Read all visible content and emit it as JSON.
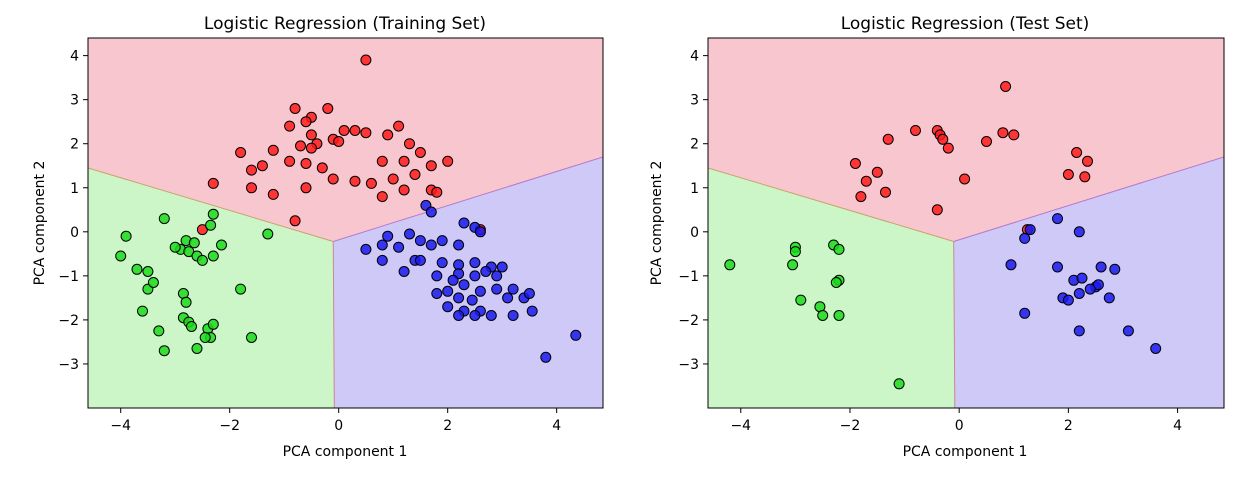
{
  "chart_data": [
    {
      "type": "scatter",
      "title": "Logistic Regression (Training Set)",
      "xlabel": "PCA component 1",
      "ylabel": "PCA component 2",
      "xlim": [
        -4.6,
        4.85
      ],
      "ylim": [
        -4.0,
        4.4
      ],
      "xticks": [
        -4,
        -2,
        0,
        2,
        4
      ],
      "yticks": [
        4,
        3,
        2,
        1,
        0,
        -1,
        -2,
        -3
      ],
      "xtick_labels": [
        "−4",
        "−2",
        "0",
        "2",
        "4"
      ],
      "ytick_labels": [
        "4",
        "3",
        "2",
        "1",
        "0",
        "−1",
        "−2",
        "−3"
      ],
      "regions": [
        {
          "name": "class-0-region",
          "color": "#f8c6cf",
          "polygon": [
            [
              -4.6,
              1.45
            ],
            [
              -0.1,
              -0.22
            ],
            [
              4.85,
              1.7
            ],
            [
              4.85,
              4.4
            ],
            [
              -4.6,
              4.4
            ]
          ]
        },
        {
          "name": "class-1-region",
          "color": "#ccf5c8",
          "polygon": [
            [
              -4.6,
              1.45
            ],
            [
              -0.1,
              -0.22
            ],
            [
              -0.08,
              -4.0
            ],
            [
              -4.6,
              -4.0
            ]
          ]
        },
        {
          "name": "class-2-region",
          "color": "#cec9f6",
          "polygon": [
            [
              -0.1,
              -0.22
            ],
            [
              4.85,
              1.7
            ],
            [
              4.85,
              -4.0
            ],
            [
              -0.08,
              -4.0
            ]
          ]
        }
      ],
      "series": [
        {
          "name": "class-0",
          "color": "#ff1a1a",
          "points": [
            [
              0.5,
              3.9
            ],
            [
              -0.8,
              2.8
            ],
            [
              -0.5,
              2.6
            ],
            [
              -0.2,
              2.8
            ],
            [
              -0.9,
              2.4
            ],
            [
              -0.6,
              2.5
            ],
            [
              -0.5,
              2.2
            ],
            [
              -0.4,
              2.0
            ],
            [
              -0.7,
              1.95
            ],
            [
              -0.5,
              1.9
            ],
            [
              -0.1,
              2.1
            ],
            [
              0.0,
              2.05
            ],
            [
              0.1,
              2.3
            ],
            [
              0.3,
              2.3
            ],
            [
              0.5,
              2.25
            ],
            [
              0.8,
              1.6
            ],
            [
              0.9,
              2.2
            ],
            [
              1.1,
              2.4
            ],
            [
              1.3,
              2.0
            ],
            [
              1.5,
              1.8
            ],
            [
              1.7,
              1.5
            ],
            [
              2.0,
              1.6
            ],
            [
              -1.8,
              1.8
            ],
            [
              -1.6,
              1.4
            ],
            [
              -1.4,
              1.5
            ],
            [
              -1.2,
              1.85
            ],
            [
              -0.9,
              1.6
            ],
            [
              -0.6,
              1.55
            ],
            [
              -0.3,
              1.45
            ],
            [
              -0.1,
              1.2
            ],
            [
              0.3,
              1.15
            ],
            [
              0.6,
              1.1
            ],
            [
              0.8,
              0.8
            ],
            [
              1.0,
              1.2
            ],
            [
              1.2,
              0.95
            ],
            [
              1.4,
              1.3
            ],
            [
              1.7,
              0.95
            ],
            [
              -2.3,
              1.1
            ],
            [
              -1.6,
              1.0
            ],
            [
              -1.2,
              0.85
            ],
            [
              -0.8,
              0.25
            ],
            [
              -0.6,
              1.0
            ],
            [
              1.2,
              1.6
            ],
            [
              -2.5,
              0.05
            ],
            [
              2.6,
              0.05
            ],
            [
              1.8,
              0.9
            ]
          ]
        },
        {
          "name": "class-1",
          "color": "#1adb1a",
          "points": [
            [
              -3.9,
              -0.1
            ],
            [
              -4.0,
              -0.55
            ],
            [
              -3.7,
              -0.85
            ],
            [
              -3.5,
              -0.9
            ],
            [
              -3.5,
              -1.3
            ],
            [
              -3.4,
              -1.15
            ],
            [
              -3.2,
              0.3
            ],
            [
              -2.9,
              -0.4
            ],
            [
              -2.8,
              -0.2
            ],
            [
              -2.75,
              -0.45
            ],
            [
              -2.65,
              -0.25
            ],
            [
              -2.6,
              -0.55
            ],
            [
              -2.5,
              -0.65
            ],
            [
              -2.35,
              0.15
            ],
            [
              -2.3,
              0.4
            ],
            [
              -2.15,
              -0.3
            ],
            [
              -2.3,
              -0.55
            ],
            [
              -3.0,
              -0.35
            ],
            [
              -3.6,
              -1.8
            ],
            [
              -3.3,
              -2.25
            ],
            [
              -3.2,
              -2.7
            ],
            [
              -2.85,
              -1.4
            ],
            [
              -2.8,
              -1.6
            ],
            [
              -2.85,
              -1.95
            ],
            [
              -2.75,
              -2.05
            ],
            [
              -2.7,
              -2.15
            ],
            [
              -2.6,
              -2.65
            ],
            [
              -2.4,
              -2.2
            ],
            [
              -2.35,
              -2.4
            ],
            [
              -2.3,
              -2.1
            ],
            [
              -1.8,
              -1.3
            ],
            [
              -1.6,
              -2.4
            ],
            [
              -1.3,
              -0.05
            ],
            [
              -2.45,
              -2.4
            ]
          ]
        },
        {
          "name": "class-2",
          "color": "#1a1aee",
          "points": [
            [
              1.6,
              0.6
            ],
            [
              1.7,
              0.45
            ],
            [
              2.3,
              0.2
            ],
            [
              2.5,
              0.1
            ],
            [
              2.6,
              0.0
            ],
            [
              0.5,
              -0.4
            ],
            [
              0.8,
              -0.3
            ],
            [
              0.9,
              -0.1
            ],
            [
              1.1,
              -0.35
            ],
            [
              1.3,
              -0.05
            ],
            [
              1.5,
              -0.2
            ],
            [
              1.7,
              -0.3
            ],
            [
              1.9,
              -0.2
            ],
            [
              2.2,
              -0.3
            ],
            [
              0.8,
              -0.65
            ],
            [
              1.4,
              -0.65
            ],
            [
              1.5,
              -0.65
            ],
            [
              1.9,
              -0.7
            ],
            [
              2.2,
              -0.75
            ],
            [
              2.2,
              -0.95
            ],
            [
              2.5,
              -0.7
            ],
            [
              2.8,
              -0.8
            ],
            [
              2.7,
              -0.9
            ],
            [
              3.0,
              -0.8
            ],
            [
              1.2,
              -0.9
            ],
            [
              1.8,
              -1.0
            ],
            [
              2.1,
              -1.1
            ],
            [
              2.5,
              -1.0
            ],
            [
              1.8,
              -1.4
            ],
            [
              2.0,
              -1.35
            ],
            [
              2.3,
              -1.2
            ],
            [
              2.6,
              -1.35
            ],
            [
              2.9,
              -1.3
            ],
            [
              3.2,
              -1.3
            ],
            [
              3.4,
              -1.5
            ],
            [
              3.5,
              -1.4
            ],
            [
              2.0,
              -1.7
            ],
            [
              2.3,
              -1.8
            ],
            [
              2.6,
              -1.8
            ],
            [
              2.8,
              -1.9
            ],
            [
              3.2,
              -1.9
            ],
            [
              3.55,
              -1.8
            ],
            [
              2.2,
              -1.9
            ],
            [
              2.5,
              -1.9
            ],
            [
              3.8,
              -2.85
            ],
            [
              4.35,
              -2.35
            ],
            [
              2.9,
              -1.0
            ],
            [
              2.45,
              -1.55
            ],
            [
              2.2,
              -1.5
            ],
            [
              3.1,
              -1.5
            ]
          ]
        }
      ]
    },
    {
      "type": "scatter",
      "title": "Logistic Regression (Test Set)",
      "xlabel": "PCA component 1",
      "ylabel": "PCA component 2",
      "xlim": [
        -4.6,
        4.85
      ],
      "ylim": [
        -4.0,
        4.4
      ],
      "xticks": [
        -4,
        -2,
        0,
        2,
        4
      ],
      "yticks": [
        4,
        3,
        2,
        1,
        0,
        -1,
        -2,
        -3
      ],
      "xtick_labels": [
        "−4",
        "−2",
        "0",
        "2",
        "4"
      ],
      "ytick_labels": [
        "4",
        "3",
        "2",
        "1",
        "0",
        "−1",
        "−2",
        "−3"
      ],
      "regions": [
        {
          "name": "class-0-region",
          "color": "#f8c6cf",
          "polygon": [
            [
              -4.6,
              1.45
            ],
            [
              -0.1,
              -0.22
            ],
            [
              4.85,
              1.7
            ],
            [
              4.85,
              4.4
            ],
            [
              -4.6,
              4.4
            ]
          ]
        },
        {
          "name": "class-1-region",
          "color": "#ccf5c8",
          "polygon": [
            [
              -4.6,
              1.45
            ],
            [
              -0.1,
              -0.22
            ],
            [
              -0.08,
              -4.0
            ],
            [
              -4.6,
              -4.0
            ]
          ]
        },
        {
          "name": "class-2-region",
          "color": "#cec9f6",
          "polygon": [
            [
              -0.1,
              -0.22
            ],
            [
              4.85,
              1.7
            ],
            [
              4.85,
              -4.0
            ],
            [
              -0.08,
              -4.0
            ]
          ]
        }
      ],
      "series": [
        {
          "name": "class-0",
          "color": "#ff1a1a",
          "points": [
            [
              0.85,
              3.3
            ],
            [
              -1.3,
              2.1
            ],
            [
              -0.8,
              2.3
            ],
            [
              -0.4,
              2.3
            ],
            [
              -0.35,
              2.2
            ],
            [
              -0.3,
              2.1
            ],
            [
              -0.2,
              1.9
            ],
            [
              0.5,
              2.05
            ],
            [
              0.8,
              2.25
            ],
            [
              1.0,
              2.2
            ],
            [
              2.15,
              1.8
            ],
            [
              2.35,
              1.6
            ],
            [
              -1.9,
              1.55
            ],
            [
              -1.7,
              1.15
            ],
            [
              -1.5,
              1.35
            ],
            [
              -1.35,
              0.9
            ],
            [
              -1.8,
              0.8
            ],
            [
              0.1,
              1.2
            ],
            [
              2.0,
              1.3
            ],
            [
              2.3,
              1.25
            ],
            [
              -0.4,
              0.5
            ],
            [
              1.25,
              0.05
            ]
          ]
        },
        {
          "name": "class-1",
          "color": "#1adb1a",
          "points": [
            [
              -4.2,
              -0.75
            ],
            [
              -3.0,
              -0.35
            ],
            [
              -3.0,
              -0.45
            ],
            [
              -3.05,
              -0.75
            ],
            [
              -2.9,
              -1.55
            ],
            [
              -2.55,
              -1.7
            ],
            [
              -2.5,
              -1.9
            ],
            [
              -2.3,
              -0.3
            ],
            [
              -2.2,
              -0.4
            ],
            [
              -2.2,
              -1.1
            ],
            [
              -2.25,
              -1.15
            ],
            [
              -2.2,
              -1.9
            ],
            [
              -1.1,
              -3.45
            ]
          ]
        },
        {
          "name": "class-2",
          "color": "#1a1aee",
          "points": [
            [
              1.8,
              0.3
            ],
            [
              2.2,
              0.0
            ],
            [
              1.2,
              -0.15
            ],
            [
              1.3,
              0.05
            ],
            [
              0.95,
              -0.75
            ],
            [
              1.8,
              -0.8
            ],
            [
              2.1,
              -1.1
            ],
            [
              2.25,
              -1.05
            ],
            [
              2.6,
              -0.8
            ],
            [
              2.85,
              -0.85
            ],
            [
              2.5,
              -1.25
            ],
            [
              2.55,
              -1.2
            ],
            [
              2.4,
              -1.3
            ],
            [
              1.9,
              -1.5
            ],
            [
              2.0,
              -1.55
            ],
            [
              2.2,
              -1.4
            ],
            [
              2.75,
              -1.5
            ],
            [
              1.2,
              -1.85
            ],
            [
              2.2,
              -2.25
            ],
            [
              3.1,
              -2.25
            ],
            [
              3.6,
              -2.65
            ]
          ]
        }
      ]
    }
  ]
}
